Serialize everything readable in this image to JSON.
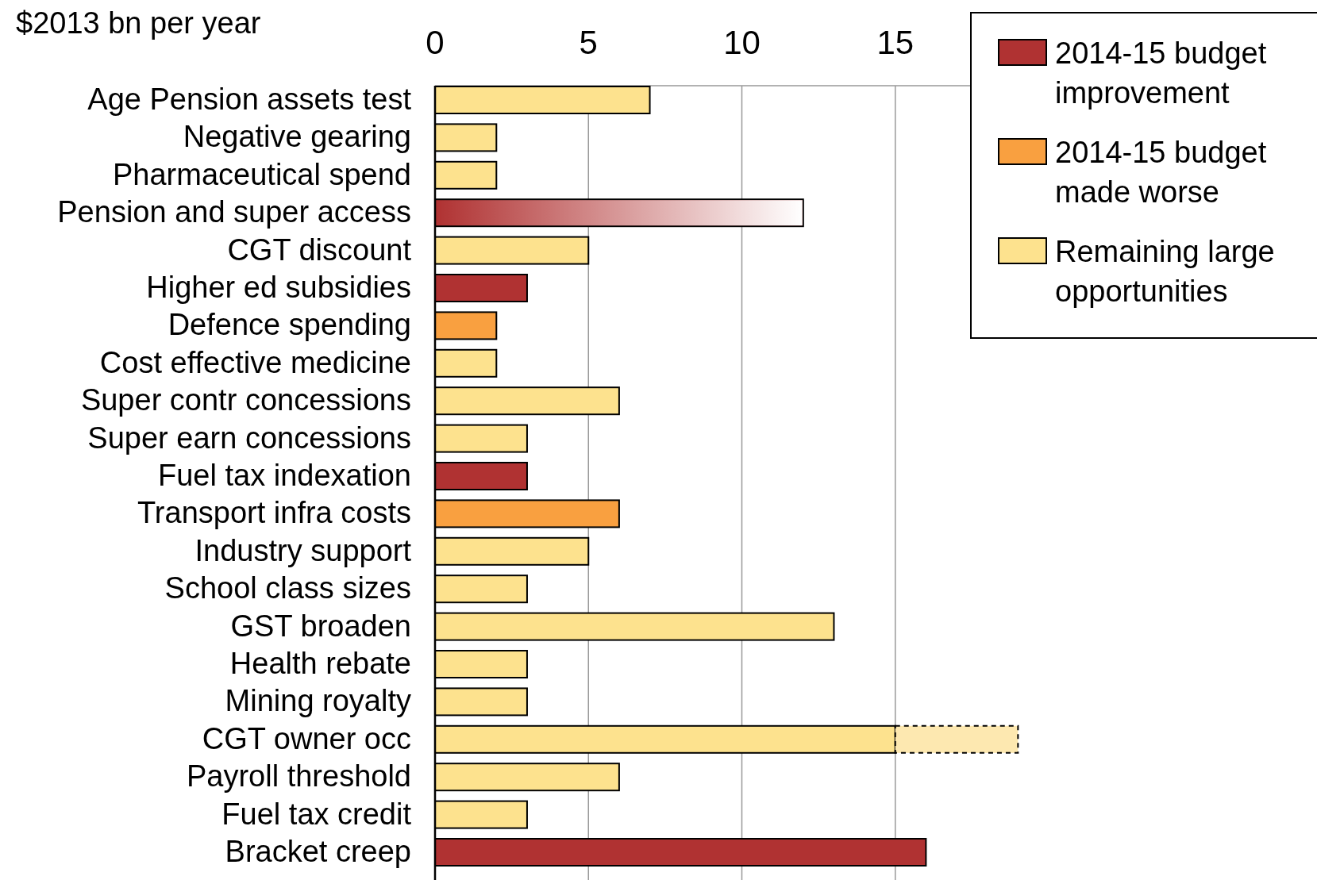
{
  "chart_data": {
    "type": "bar",
    "orientation": "horizontal",
    "stacked": true,
    "title": "$2013 bn per year",
    "categories": [
      "Age Pension assets test",
      "Negative gearing",
      "Pharmaceutical spend",
      "Pension and super access",
      "CGT discount",
      "Higher ed subsidies",
      "Defence spending",
      "Cost effective medicine",
      "Super contr concessions",
      "Super earn concessions",
      "Fuel tax indexation",
      "Transport infra costs",
      "Industry support",
      "School class sizes",
      "GST broaden",
      "Health rebate",
      "Mining royalty",
      "CGT owner occ",
      "Payroll threshold",
      "Fuel tax credit",
      "Bracket creep"
    ],
    "series": [
      {
        "name": "2014-15 budget improvement",
        "color": "#b03232",
        "values": [
          null,
          null,
          null,
          null,
          null,
          3,
          null,
          null,
          null,
          null,
          3,
          null,
          null,
          null,
          null,
          null,
          null,
          null,
          null,
          null,
          16
        ]
      },
      {
        "name": "2014-15 budget made worse",
        "color": "#f9a040",
        "values": [
          null,
          null,
          null,
          null,
          null,
          null,
          2,
          null,
          null,
          null,
          null,
          6,
          null,
          null,
          null,
          null,
          null,
          null,
          null,
          null,
          null
        ]
      },
      {
        "name": "Remaining large opportunities",
        "color": "#fde28e",
        "values": [
          7,
          2,
          2,
          null,
          5,
          null,
          null,
          2,
          6,
          3,
          null,
          null,
          5,
          3,
          13,
          3,
          3,
          15,
          6,
          3,
          null
        ]
      },
      {
        "color": "#b03232",
        "values": [
          null,
          null,
          null,
          12,
          null,
          null,
          null,
          null,
          null,
          null,
          null,
          null,
          null,
          null,
          null,
          null,
          null,
          null,
          null,
          null,
          null
        ]
      },
      {
        "color": "#fde8b0",
        "line_style": "dashed",
        "values": [
          null,
          null,
          null,
          null,
          null,
          null,
          null,
          null,
          null,
          null,
          null,
          null,
          null,
          null,
          null,
          null,
          null,
          4,
          null,
          null,
          null
        ]
      }
    ],
    "xlim": [
      0,
      20
    ],
    "xticks": [
      0,
      5,
      10,
      15
    ],
    "grid": "x",
    "legend": "top right"
  }
}
